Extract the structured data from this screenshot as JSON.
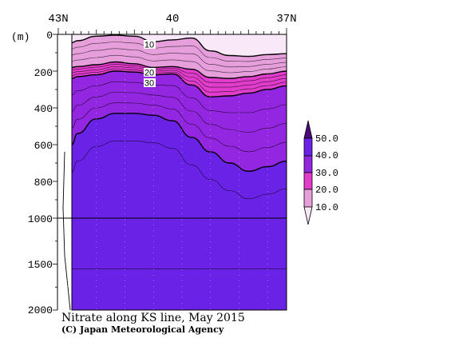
{
  "chart_data": {
    "type": "contour-section",
    "title": "Nitrate along KS line, May 2015",
    "credit": "(C) Japan Meteorological Agency",
    "ylabel": "(m)",
    "x_ticks": [
      "43N",
      "40",
      "37N"
    ],
    "x_range": [
      43,
      37
    ],
    "y_ticks": [
      "0",
      "200",
      "400",
      "600",
      "800",
      "1000",
      "1500",
      "2000"
    ],
    "y_axis": "depth, piecewise-linear scale: 0-1000 m expanded, 1000-2000 m compressed",
    "contour_labels": [
      "10",
      "20",
      "30"
    ],
    "colorbar": {
      "labels": [
        "50.0",
        "40.0",
        "30.0",
        "20.0",
        "10.0"
      ],
      "colors": [
        "#4b0a78",
        "#6a22e6",
        "#9326e0",
        "#e13ccc",
        "#e79fdc",
        "#f8e8f8"
      ]
    },
    "contour_depths_m": {
      "x": [
        43,
        42.5,
        42,
        41.5,
        41,
        40.5,
        40,
        39.5,
        39,
        38.5,
        38,
        37.5,
        37
      ],
      "iso10": [
        45,
        35,
        10,
        5,
        10,
        40,
        30,
        20,
        90,
        115,
        120,
        110,
        105
      ],
      "iso20": [
        180,
        175,
        165,
        150,
        160,
        180,
        175,
        190,
        235,
        240,
        230,
        215,
        200
      ],
      "iso30": [
        240,
        230,
        220,
        200,
        205,
        220,
        215,
        275,
        340,
        335,
        320,
        300,
        280
      ],
      "iso40": [
        600,
        540,
        460,
        430,
        430,
        440,
        470,
        560,
        640,
        700,
        745,
        720,
        690
      ]
    }
  }
}
